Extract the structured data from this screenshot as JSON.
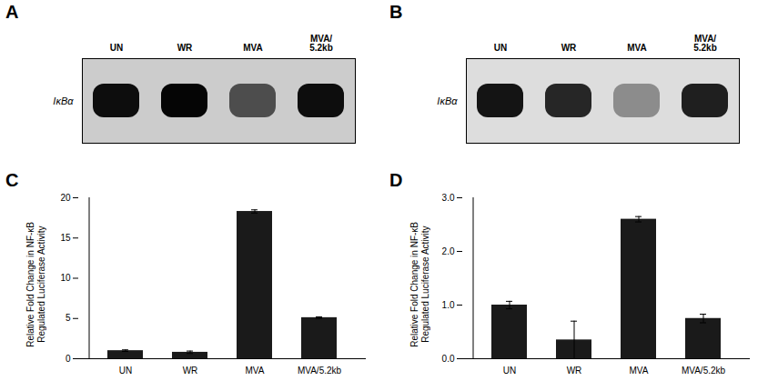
{
  "chart_data": [
    {
      "type": "blot",
      "title": "A",
      "categories": [
        "UN",
        "WR",
        "MVA",
        "MVA/5.2kb"
      ],
      "ylabel": "IκBα",
      "band_darkness": [
        0.05,
        0.02,
        0.3,
        0.05
      ],
      "color": "#cccccc"
    },
    {
      "type": "blot",
      "title": "B",
      "categories": [
        "UN",
        "WR",
        "MVA",
        "MVA/5.2kb"
      ],
      "ylabel": "IκBα",
      "band_darkness": [
        0.08,
        0.15,
        0.55,
        0.12
      ],
      "color": "#dddddd"
    },
    {
      "type": "bar",
      "title": "C",
      "categories": [
        "UN",
        "WR",
        "MVA",
        "MVA/5.2kb"
      ],
      "values": [
        1.0,
        0.8,
        18.3,
        5.1
      ],
      "errors": [
        0.1,
        0.15,
        0.2,
        0.1
      ],
      "ylabel": "Relative Fold Change in NF-κB\nRegulated Luciferase Activity",
      "color": "#1a1a1a",
      "ylim": [
        0,
        20
      ],
      "yticks": [
        0,
        5,
        10,
        15,
        20
      ],
      "grid": false
    },
    {
      "type": "bar",
      "title": "D",
      "categories": [
        "UN",
        "WR",
        "MVA",
        "MVA/5.2kb"
      ],
      "values": [
        1.0,
        0.35,
        2.6,
        0.75
      ],
      "errors": [
        0.07,
        0.35,
        0.05,
        0.08
      ],
      "ylabel": "Relative Fold Change in NF-κB\nRegulated Luciferase Activity",
      "color": "#1a1a1a",
      "ylim": [
        0,
        3
      ],
      "yticks": [
        0,
        1,
        2,
        3
      ],
      "grid": false
    }
  ]
}
